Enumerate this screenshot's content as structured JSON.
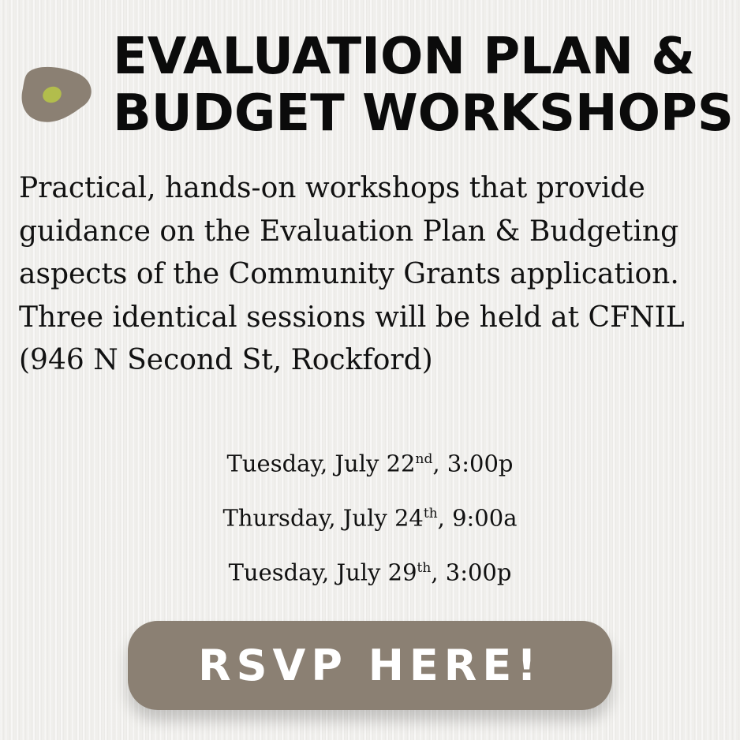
{
  "colors": {
    "button": "#8b8073",
    "logo_blob": "#8b8073",
    "logo_dot": "#b2bd4c",
    "text": "#111111"
  },
  "title": {
    "line1": "EVALUATION PLAN &",
    "line2": "BUDGET WORKSHOPS"
  },
  "description": "Practical, hands-on workshops that provide guidance on the Evaluation Plan & Budgeting aspects of the Community Grants application. Three identical sessions will be held at CFNIL (946 N Second St, Rockford)",
  "sessions": [
    {
      "day": "Tuesday, July 22",
      "suffix": "nd",
      "time": ", 3:00p"
    },
    {
      "day": "Thursday, July 24",
      "suffix": "th",
      "time": ", 9:00a"
    },
    {
      "day": "Tuesday, July 29",
      "suffix": "th",
      "time": ", 3:00p"
    }
  ],
  "rsvp_label": "RSVP HERE!"
}
